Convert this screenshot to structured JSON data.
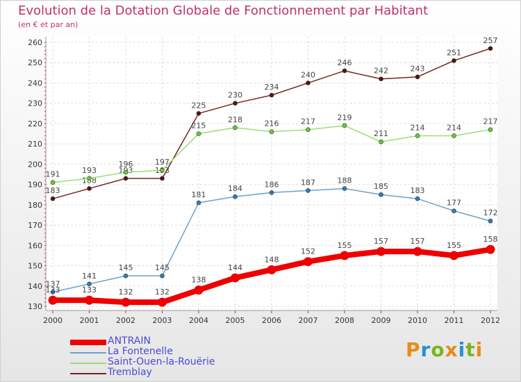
{
  "title": "Evolution de la Dotation Globale de Fonctionnement par Habitant",
  "subtitle": "(en € et par an)",
  "logo": {
    "text": "Proxiti",
    "colors": [
      "#e88a1a",
      "#2a8fd0",
      "#7ab51d",
      "#e88a1a",
      "#2a8fd0",
      "#7ab51d",
      "#e88a1a"
    ]
  },
  "chart_data": {
    "type": "line",
    "x": [
      "2000",
      "2001",
      "2002",
      "2003",
      "2004",
      "2005",
      "2006",
      "2007",
      "2008",
      "2009",
      "2010",
      "2011",
      "2012"
    ],
    "ylim": [
      130,
      260
    ],
    "yticks": [
      "130",
      "140",
      "150",
      "160",
      "170",
      "180",
      "190",
      "200",
      "210",
      "220",
      "230",
      "240",
      "250",
      "260"
    ],
    "grid": true,
    "legend_position": "bottom-left",
    "series": [
      {
        "name": "ANTRAIN",
        "color": "#ee0000",
        "marker": "#ee0000",
        "thick": true,
        "values": [
          133,
          133,
          132,
          132,
          138,
          144,
          148,
          152,
          155,
          157,
          157,
          155,
          158
        ],
        "labels": [
          "133",
          "133",
          "132",
          "132",
          "138",
          "144",
          "148",
          "152",
          "155",
          "157",
          "157",
          "155",
          "158"
        ]
      },
      {
        "name": "La Fontenelle",
        "color": "#6aa2cc",
        "marker": "#2f7db8",
        "thick": false,
        "values": [
          137,
          141,
          145,
          145,
          181,
          184,
          186,
          187,
          188,
          185,
          183,
          177,
          172
        ],
        "labels": [
          "137",
          "141",
          "145",
          "145",
          "181",
          "184",
          "186",
          "187",
          "188",
          "185",
          "183",
          "177",
          "172"
        ]
      },
      {
        "name": "Saint-Ouen-la-Rouërie",
        "color": "#99dd77",
        "marker": "#66cc33",
        "thick": false,
        "values": [
          191,
          193,
          196,
          197,
          215,
          218,
          216,
          217,
          219,
          211,
          214,
          214,
          217
        ],
        "labels": [
          "191",
          "193",
          "196",
          "197",
          "215",
          "218",
          "216",
          "217",
          "219",
          "211",
          "214",
          "214",
          "217"
        ]
      },
      {
        "name": "Tremblay",
        "color": "#772222",
        "marker": "#5a1010",
        "thick": false,
        "values": [
          183,
          188,
          193,
          193,
          225,
          230,
          234,
          240,
          246,
          242,
          243,
          251,
          257
        ],
        "labels": [
          "183",
          "188",
          "193",
          "193",
          "225",
          "230",
          "234",
          "240",
          "246",
          "242",
          "243",
          "251",
          "257"
        ]
      }
    ]
  }
}
